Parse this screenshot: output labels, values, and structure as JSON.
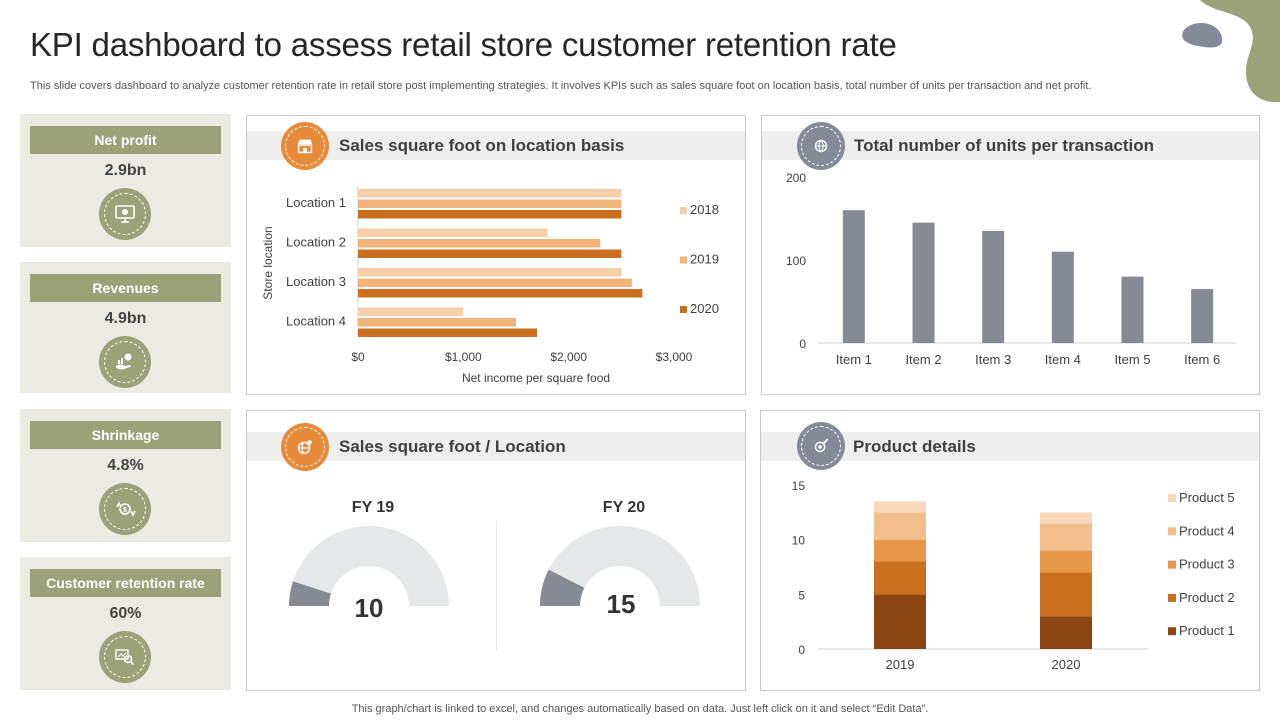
{
  "header": {
    "title": "KPI dashboard to assess retail store customer retention rate",
    "subtitle": "This slide covers dashboard to analyze customer retention rate in retail store post implementing strategies. It involves KPIs such as sales square foot on location basis, total number of units per transaction and net profit."
  },
  "footer": "This graph/chart is linked to excel,  and changes automatically based on data. Just left click on it and select “Edit Data”.",
  "kpis": [
    {
      "label": "Net profit",
      "value": "2.9bn",
      "icon": "monitor-money-icon"
    },
    {
      "label": "Revenues",
      "value": "4.9bn",
      "icon": "hand-coins-icon"
    },
    {
      "label": "Shrinkage",
      "value": "4.8%",
      "icon": "dollar-arrows-icon"
    },
    {
      "label": "Customer retention rate",
      "value": "60%",
      "icon": "magnifier-chart-icon"
    }
  ],
  "colors": {
    "kpi_accent": "#9ba279",
    "kpi_bg": "#ebebe3",
    "orange_icon": "#e78b3b",
    "slate_icon": "#848a97",
    "bar_2018": "#f6cfa8",
    "bar_2019": "#f0b47a",
    "bar_2020": "#c96f1f",
    "units_bar": "#858a93",
    "gauge_fill": "#858a93",
    "gauge_track": "#e6e7e9"
  },
  "chart_data": [
    {
      "type": "bar",
      "orientation": "horizontal",
      "title": "Sales square foot on location basis",
      "xlabel": "Net income per square food",
      "ylabel": "Store location",
      "categories": [
        "Location 1",
        "Location 2",
        "Location 3",
        "Location 4"
      ],
      "series": [
        {
          "name": "2018",
          "values": [
            2500,
            1800,
            2500,
            1000
          ]
        },
        {
          "name": "2019",
          "values": [
            2500,
            2300,
            2600,
            1500
          ]
        },
        {
          "name": "2020",
          "values": [
            2500,
            2500,
            2700,
            1700
          ]
        }
      ],
      "xticks": [
        "$0",
        "$1,000",
        "$2,000",
        "$3,000"
      ],
      "xlim": [
        0,
        3000
      ],
      "legend": "right"
    },
    {
      "type": "bar",
      "title": "Total number of units per transaction",
      "categories": [
        "Item 1",
        "Item 2",
        "Item 3",
        "Item 4",
        "Item 5",
        "Item 6"
      ],
      "values": [
        160,
        145,
        135,
        110,
        80,
        65
      ],
      "yticks": [
        "0",
        "100",
        "200"
      ],
      "ylim": [
        0,
        200
      ]
    },
    {
      "type": "gauge",
      "title": "Sales square foot / Location",
      "gauges": [
        {
          "label": "FY 19",
          "value": 10,
          "display": "10",
          "max": 100
        },
        {
          "label": "FY 20",
          "value": 15,
          "display": "15",
          "max": 100
        }
      ]
    },
    {
      "type": "stacked-bar",
      "title": "Product details",
      "categories": [
        "2019",
        "2020"
      ],
      "series": [
        {
          "name": "Product 1",
          "values": [
            5,
            3
          ],
          "color": "#8b4513"
        },
        {
          "name": "Product 2",
          "values": [
            3,
            4
          ],
          "color": "#c96f1f"
        },
        {
          "name": "Product 3",
          "values": [
            2,
            2
          ],
          "color": "#e8974a"
        },
        {
          "name": "Product 4",
          "values": [
            2.5,
            2.5
          ],
          "color": "#f1be8c"
        },
        {
          "name": "Product 5",
          "values": [
            1,
            1
          ],
          "color": "#f7d8b8"
        }
      ],
      "yticks": [
        "0",
        "5",
        "10",
        "15"
      ],
      "ylim": [
        0,
        15
      ],
      "legend": "right"
    }
  ]
}
